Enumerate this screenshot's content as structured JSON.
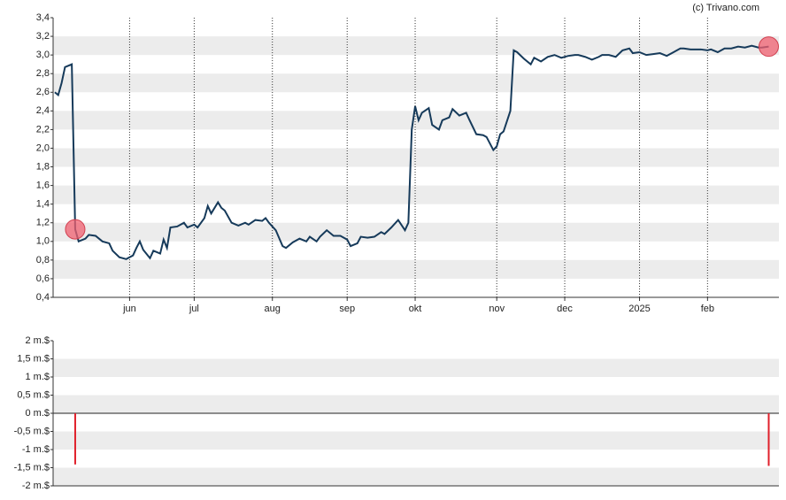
{
  "credit": "(c) Trivano.com",
  "chart_data": [
    {
      "type": "line",
      "color": "#163a5a",
      "banded": true,
      "grid": true,
      "x": [
        0,
        1,
        2,
        3,
        5,
        6,
        7,
        9,
        10,
        12,
        14,
        16,
        17,
        19,
        21,
        23,
        24,
        25,
        26,
        28,
        29,
        31,
        32,
        33,
        34,
        36,
        38,
        39,
        41,
        42,
        44,
        45,
        46,
        48,
        49,
        50,
        52,
        54,
        56,
        57,
        59,
        61,
        62,
        63,
        65,
        67,
        68,
        70,
        72,
        74,
        75,
        77,
        78,
        80,
        82,
        84,
        86,
        87,
        89,
        90,
        92,
        94,
        96,
        97,
        99,
        101,
        103,
        104,
        105,
        106,
        107,
        108,
        110,
        111,
        113,
        114,
        116,
        117,
        119,
        121,
        122,
        124,
        126,
        127,
        129,
        130,
        131,
        132,
        134,
        135,
        136,
        138,
        140,
        141,
        143,
        145,
        147,
        149,
        151,
        153,
        154,
        156,
        158,
        160,
        161,
        163,
        165,
        167,
        169,
        170,
        172,
        174,
        176,
        178,
        180,
        182,
        184,
        185,
        187,
        190,
        192,
        193,
        195,
        197,
        199,
        201,
        203,
        205,
        207,
        208,
        210
      ],
      "values": [
        2.6,
        2.57,
        2.7,
        2.87,
        2.9,
        1.13,
        1.0,
        1.03,
        1.07,
        1.06,
        1.0,
        0.98,
        0.9,
        0.83,
        0.81,
        0.85,
        0.93,
        1.0,
        0.91,
        0.82,
        0.9,
        0.87,
        1.02,
        0.93,
        1.15,
        1.16,
        1.2,
        1.15,
        1.18,
        1.15,
        1.25,
        1.38,
        1.3,
        1.42,
        1.36,
        1.33,
        1.2,
        1.17,
        1.2,
        1.18,
        1.23,
        1.22,
        1.25,
        1.2,
        1.12,
        0.95,
        0.93,
        0.99,
        1.03,
        1.0,
        1.05,
        1.0,
        1.05,
        1.12,
        1.06,
        1.06,
        1.02,
        0.95,
        0.98,
        1.05,
        1.04,
        1.05,
        1.1,
        1.08,
        1.15,
        1.23,
        1.12,
        1.2,
        2.2,
        2.45,
        2.3,
        2.38,
        2.43,
        2.25,
        2.2,
        2.3,
        2.33,
        2.42,
        2.35,
        2.38,
        2.3,
        2.15,
        2.14,
        2.12,
        1.98,
        2.02,
        2.15,
        2.18,
        2.4,
        3.05,
        3.03,
        2.96,
        2.9,
        2.97,
        2.93,
        2.98,
        3.0,
        2.97,
        2.99,
        3.0,
        3.0,
        2.98,
        2.95,
        2.98,
        3.0,
        3.0,
        2.98,
        3.05,
        3.07,
        3.02,
        3.03,
        3.0,
        3.01,
        3.02,
        2.99,
        3.03,
        3.07,
        3.07,
        3.06,
        3.06,
        3.05,
        3.06,
        3.03,
        3.07,
        3.07,
        3.09,
        3.08,
        3.1,
        3.08,
        3.08,
        3.09
      ],
      "markers": [
        {
          "x": 6,
          "y": 1.13,
          "color": "#f06070"
        },
        {
          "x": 210,
          "y": 3.09,
          "color": "#f06070"
        }
      ],
      "xlim": [
        -0.5,
        213
      ],
      "xticks": [
        {
          "value": 22,
          "label": "jun"
        },
        {
          "value": 41,
          "label": "jul"
        },
        {
          "value": 64,
          "label": "aug"
        },
        {
          "value": 86,
          "label": "sep"
        },
        {
          "value": 106,
          "label": "okt"
        },
        {
          "value": 130,
          "label": "nov"
        },
        {
          "value": 150,
          "label": "dec"
        },
        {
          "value": 172,
          "label": "2025"
        },
        {
          "value": 192,
          "label": "feb"
        }
      ],
      "ylim": [
        0.4,
        3.4
      ],
      "yticks": [
        {
          "value": 0.4,
          "label": "0,4"
        },
        {
          "value": 0.6,
          "label": "0,6"
        },
        {
          "value": 0.8,
          "label": "0,8"
        },
        {
          "value": 1.0,
          "label": "1,0"
        },
        {
          "value": 1.2,
          "label": "1,2"
        },
        {
          "value": 1.4,
          "label": "1,4"
        },
        {
          "value": 1.6,
          "label": "1,6"
        },
        {
          "value": 1.8,
          "label": "1,8"
        },
        {
          "value": 2.0,
          "label": "2,0"
        },
        {
          "value": 2.2,
          "label": "2,2"
        },
        {
          "value": 2.4,
          "label": "2,4"
        },
        {
          "value": 2.6,
          "label": "2,6"
        },
        {
          "value": 2.8,
          "label": "2,8"
        },
        {
          "value": 3.0,
          "label": "3,0"
        },
        {
          "value": 3.2,
          "label": "3,2"
        },
        {
          "value": 3.4,
          "label": "3,4"
        }
      ]
    },
    {
      "type": "bar",
      "color": "#e0202a",
      "banded": true,
      "grid": false,
      "x": [
        6,
        210
      ],
      "values": [
        -1.41,
        -1.45
      ],
      "xlim": [
        -0.5,
        213
      ],
      "ylim": [
        -2,
        2
      ],
      "yticks": [
        {
          "value": -2,
          "label": "-2 m.$"
        },
        {
          "value": -1.5,
          "label": "-1,5 m.$"
        },
        {
          "value": -1,
          "label": "-1 m.$"
        },
        {
          "value": -0.5,
          "label": "-0,5 m.$"
        },
        {
          "value": 0,
          "label": "0 m.$"
        },
        {
          "value": 0.5,
          "label": "0,5 m.$"
        },
        {
          "value": 1,
          "label": "1 m.$"
        },
        {
          "value": 1.5,
          "label": "1,5 m.$"
        },
        {
          "value": 2,
          "label": "2 m.$"
        }
      ]
    }
  ]
}
